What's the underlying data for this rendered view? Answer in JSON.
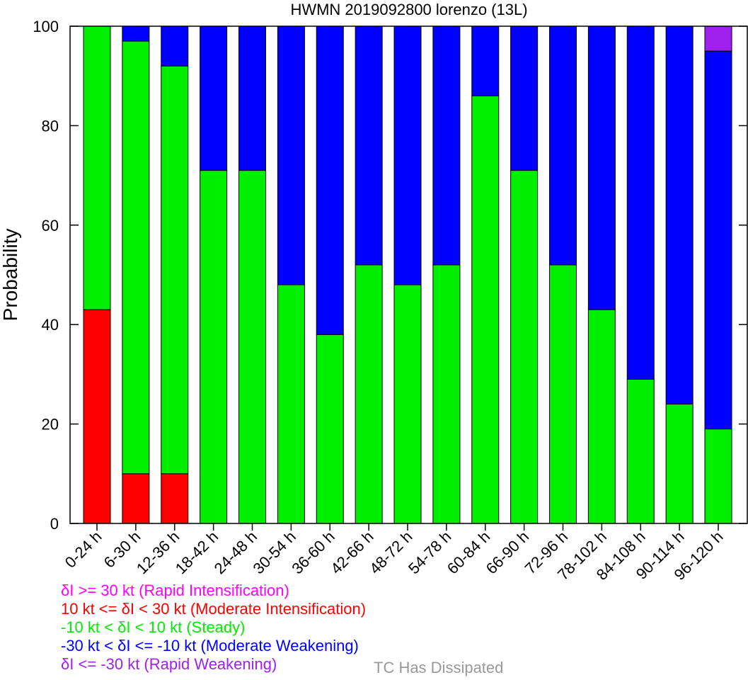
{
  "chart_data": {
    "type": "bar",
    "stacked": true,
    "title": "HWMN 2019092800 lorenzo (13L)",
    "ylabel": "Probability",
    "xlabel": "",
    "ylim": [
      0,
      100
    ],
    "yticks": [
      0,
      20,
      40,
      60,
      80,
      100
    ],
    "categories": [
      "0-24 h",
      "6-30 h",
      "12-36 h",
      "18-42 h",
      "24-48 h",
      "30-54 h",
      "36-60 h",
      "42-66 h",
      "48-72 h",
      "54-78 h",
      "60-84 h",
      "66-90 h",
      "72-96 h",
      "78-102 h",
      "84-108 h",
      "90-114 h",
      "96-120 h"
    ],
    "series": [
      {
        "color": "#ff0000",
        "values": [
          43,
          10,
          10,
          0,
          0,
          0,
          0,
          0,
          0,
          0,
          0,
          0,
          0,
          0,
          0,
          0,
          0
        ]
      },
      {
        "color": "#00ee00",
        "values": [
          57,
          87,
          82,
          71,
          71,
          48,
          38,
          52,
          48,
          52,
          86,
          71,
          52,
          43,
          29,
          24,
          19
        ]
      },
      {
        "color": "#0000ff",
        "values": [
          0,
          3,
          8,
          29,
          29,
          52,
          62,
          48,
          52,
          48,
          14,
          29,
          48,
          57,
          71,
          76,
          76
        ]
      },
      {
        "color": "#a020f0",
        "values": [
          0,
          0,
          0,
          0,
          0,
          0,
          0,
          0,
          0,
          0,
          0,
          0,
          0,
          0,
          0,
          0,
          5
        ]
      }
    ]
  },
  "legend": [
    {
      "text": "δI >= 30 kt (Rapid Intensification)",
      "color": "#ff00ff"
    },
    {
      "text": "10 kt <= δI < 30 kt (Moderate Intensification)",
      "color": "#ff0000"
    },
    {
      "text": "-10 kt < δI < 10 kt (Steady)",
      "color": "#00ee00"
    },
    {
      "text": "-30 kt < δI <= -10 kt (Moderate Weakening)",
      "color": "#0000ff"
    },
    {
      "text": "δI <= -30 kt (Rapid Weakening)",
      "color": "#a020f0"
    }
  ],
  "dissipated_label": {
    "text": "TC Has Dissipated",
    "color": "#999999"
  }
}
